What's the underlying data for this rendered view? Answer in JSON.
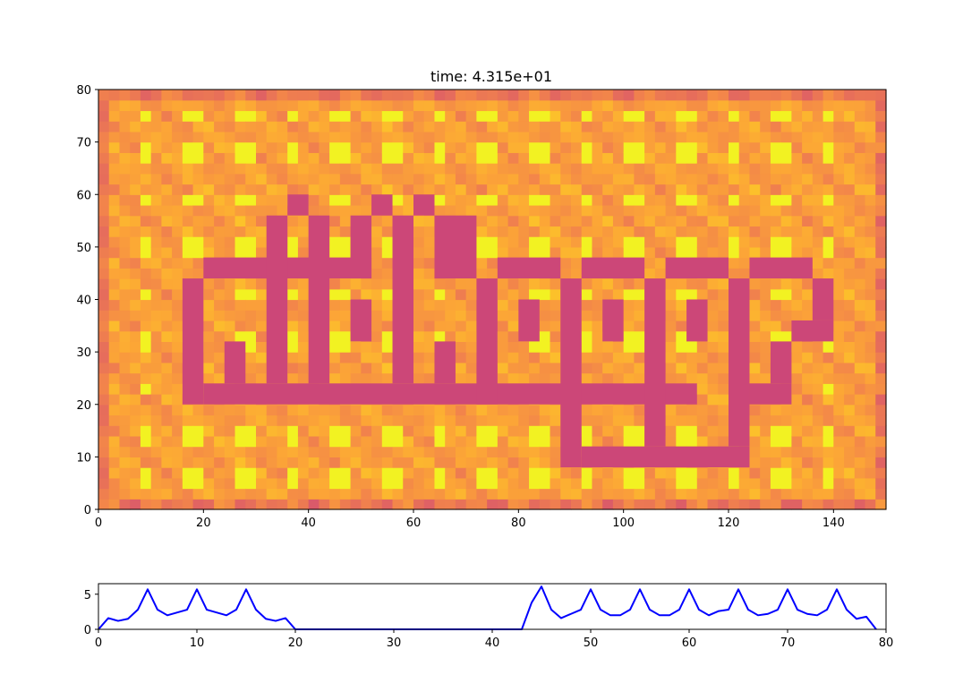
{
  "chart_data": [
    {
      "type": "heatmap",
      "title": "time: 4.315e+01",
      "xlabel": "",
      "ylabel": "",
      "xlim": [
        0,
        150
      ],
      "ylim": [
        0,
        80
      ],
      "xticks": [
        "0",
        "20",
        "40",
        "60",
        "80",
        "100",
        "120",
        "140"
      ],
      "yticks": [
        "0",
        "10",
        "20",
        "30",
        "40",
        "50",
        "60",
        "70",
        "80"
      ],
      "grid": false,
      "colormap": [
        "#cc4778",
        "#e16462",
        "#f2844b",
        "#fca636",
        "#fccd25",
        "#f0f921"
      ],
      "background_level": 0.55,
      "obstacle_color": "#cc4778",
      "obstacle_rects": [
        [
          16,
          20,
          20,
          44
        ],
        [
          20,
          20,
          114,
          24
        ],
        [
          20,
          44,
          52,
          48
        ],
        [
          24,
          24,
          28,
          32
        ],
        [
          32,
          24,
          36,
          56
        ],
        [
          36,
          56,
          40,
          60
        ],
        [
          40,
          24,
          44,
          56
        ],
        [
          48,
          44,
          52,
          56
        ],
        [
          48,
          32,
          52,
          40
        ],
        [
          52,
          56,
          56,
          60
        ],
        [
          56,
          24,
          60,
          56
        ],
        [
          60,
          56,
          64,
          60
        ],
        [
          64,
          24,
          68,
          32
        ],
        [
          64,
          44,
          72,
          56
        ],
        [
          72,
          20,
          76,
          44
        ],
        [
          76,
          44,
          88,
          48
        ],
        [
          80,
          32,
          84,
          40
        ],
        [
          88,
          8,
          92,
          44
        ],
        [
          92,
          44,
          104,
          48
        ],
        [
          96,
          32,
          100,
          40
        ],
        [
          92,
          8,
          124,
          12
        ],
        [
          104,
          12,
          108,
          44
        ],
        [
          108,
          44,
          120,
          48
        ],
        [
          112,
          32,
          116,
          40
        ],
        [
          120,
          12,
          124,
          44
        ],
        [
          124,
          20,
          132,
          24
        ],
        [
          128,
          24,
          132,
          32
        ],
        [
          132,
          32,
          140,
          36
        ],
        [
          136,
          36,
          140,
          44
        ],
        [
          124,
          44,
          136,
          48
        ]
      ],
      "hot_spot_columns": [
        9,
        18,
        28,
        37,
        46,
        56,
        65,
        74,
        84,
        93,
        102,
        112,
        121,
        130,
        139
      ],
      "hot_spot_rows": [
        6,
        14,
        23,
        32,
        41,
        50,
        59,
        68,
        75
      ]
    },
    {
      "type": "line",
      "xlabel": "",
      "ylabel": "",
      "xlim": [
        0,
        80
      ],
      "ylim": [
        0,
        6.5
      ],
      "xticks": [
        "0",
        "10",
        "20",
        "30",
        "40",
        "50",
        "60",
        "70",
        "80"
      ],
      "yticks": [
        "0",
        "5"
      ],
      "color": "#0000ff",
      "x": [
        0,
        1,
        2,
        3,
        4,
        5,
        6,
        7,
        8,
        9,
        10,
        11,
        12,
        13,
        14,
        15,
        16,
        17,
        18,
        19,
        20,
        21,
        22,
        23,
        24,
        25,
        26,
        27,
        28,
        29,
        30,
        31,
        32,
        33,
        34,
        35,
        36,
        37,
        38,
        39,
        40,
        41,
        42,
        43,
        44,
        45,
        46,
        47,
        48,
        49,
        50,
        51,
        52,
        53,
        54,
        55,
        56,
        57,
        58,
        59,
        60,
        61,
        62,
        63,
        64,
        65,
        66,
        67,
        68,
        69,
        70,
        71,
        72,
        73,
        74,
        75,
        76,
        77,
        78,
        79
      ],
      "y": [
        0,
        1.6,
        1.2,
        1.5,
        2.8,
        5.7,
        2.8,
        2.0,
        2.4,
        2.8,
        5.7,
        2.8,
        2.4,
        2.0,
        2.8,
        5.7,
        2.8,
        1.5,
        1.2,
        1.6,
        0,
        0,
        0,
        0,
        0,
        0,
        0,
        0,
        0,
        0,
        0,
        0,
        0,
        0,
        0,
        0,
        0,
        0,
        0,
        0,
        0,
        0,
        0,
        0,
        3.8,
        6.1,
        2.8,
        1.6,
        2.2,
        2.8,
        5.7,
        2.8,
        2.0,
        2.0,
        2.8,
        5.7,
        2.8,
        2.0,
        2.0,
        2.8,
        5.7,
        2.8,
        2.0,
        2.6,
        2.8,
        5.7,
        2.8,
        2.0,
        2.2,
        2.8,
        5.7,
        2.8,
        2.2,
        2.0,
        2.8,
        5.7,
        2.8,
        1.5,
        1.8,
        0
      ]
    }
  ]
}
